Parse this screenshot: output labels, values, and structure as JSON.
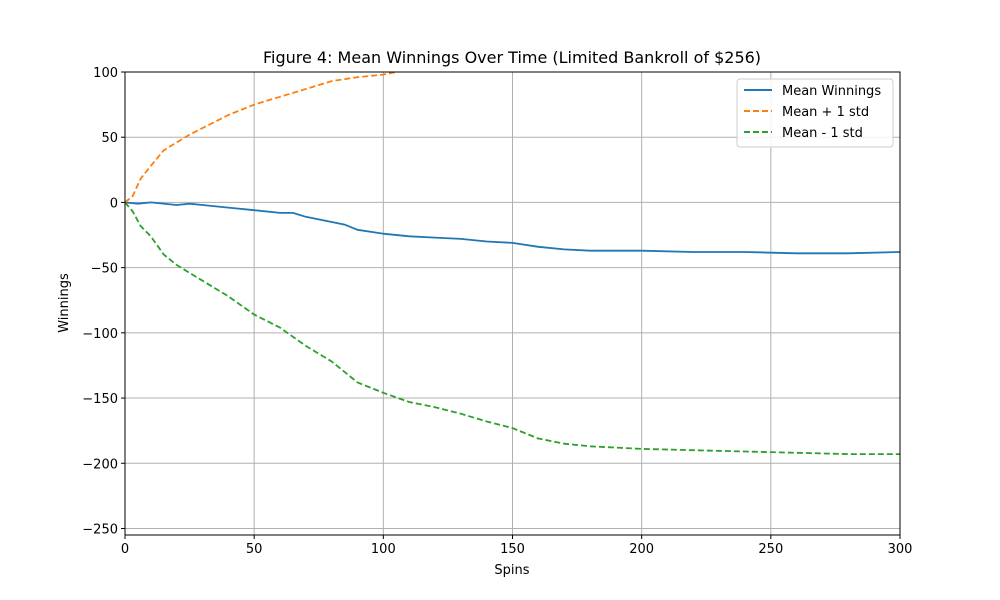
{
  "chart_data": {
    "type": "line",
    "title": "Figure 4: Mean Winnings Over Time (Limited Bankroll of $256)",
    "xlabel": "Spins",
    "ylabel": "Winnings",
    "xlim": [
      0,
      300
    ],
    "ylim": [
      -255,
      100
    ],
    "xticks": [
      0,
      50,
      100,
      150,
      200,
      250,
      300
    ],
    "yticks": [
      -250,
      -200,
      -150,
      -100,
      -50,
      0,
      50,
      100
    ],
    "grid": true,
    "legend_position": "top-right",
    "series": [
      {
        "name": "Mean Winnings",
        "color": "#1f77b4",
        "dash": "solid",
        "x": [
          0,
          5,
          10,
          20,
          25,
          30,
          40,
          50,
          60,
          65,
          70,
          80,
          85,
          90,
          100,
          110,
          120,
          130,
          140,
          150,
          160,
          170,
          180,
          190,
          200,
          220,
          240,
          260,
          280,
          300
        ],
        "y": [
          0,
          -1,
          0,
          -2,
          -1,
          -2,
          -4,
          -6,
          -8,
          -8,
          -11,
          -15,
          -17,
          -21,
          -24,
          -26,
          -27,
          -28,
          -30,
          -31,
          -34,
          -36,
          -37,
          -37,
          -37,
          -38,
          -38,
          -39,
          -39,
          -38
        ]
      },
      {
        "name": "Mean + 1 std",
        "color": "#ff7f0e",
        "dash": "dashed",
        "x": [
          0,
          3,
          6,
          10,
          15,
          20,
          25,
          30,
          40,
          50,
          60,
          70,
          80,
          90,
          100,
          105,
          108
        ],
        "y": [
          0,
          5,
          18,
          28,
          40,
          46,
          52,
          57,
          67,
          75,
          81,
          87,
          93,
          96,
          98,
          100,
          101
        ]
      },
      {
        "name": "Mean - 1 std",
        "color": "#2ca02c",
        "dash": "dashed",
        "x": [
          0,
          3,
          6,
          10,
          15,
          20,
          25,
          30,
          40,
          50,
          60,
          70,
          80,
          90,
          100,
          110,
          120,
          130,
          140,
          150,
          160,
          170,
          180,
          190,
          200,
          220,
          240,
          260,
          280,
          300
        ],
        "y": [
          0,
          -7,
          -18,
          -26,
          -40,
          -48,
          -54,
          -60,
          -72,
          -86,
          -96,
          -110,
          -122,
          -138,
          -146,
          -153,
          -157,
          -162,
          -168,
          -173,
          -181,
          -185,
          -187,
          -188,
          -189,
          -190,
          -191,
          -192,
          -193,
          -193
        ]
      }
    ]
  }
}
